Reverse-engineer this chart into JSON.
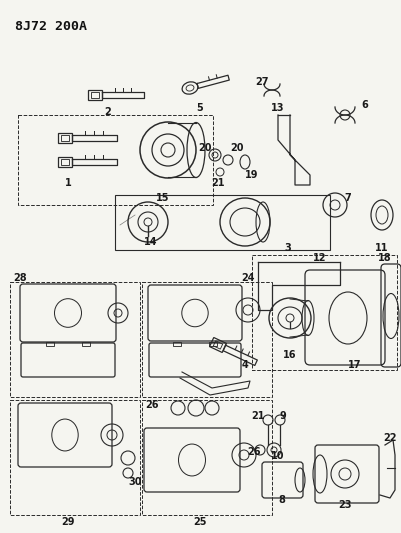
{
  "title": "8J72 200A",
  "bg_color": "#f5f5f0",
  "line_color": "#2a2a2a",
  "figsize": [
    4.02,
    5.33
  ],
  "dpi": 100,
  "label_fontsize": 7.0,
  "title_fontsize": 9.5
}
